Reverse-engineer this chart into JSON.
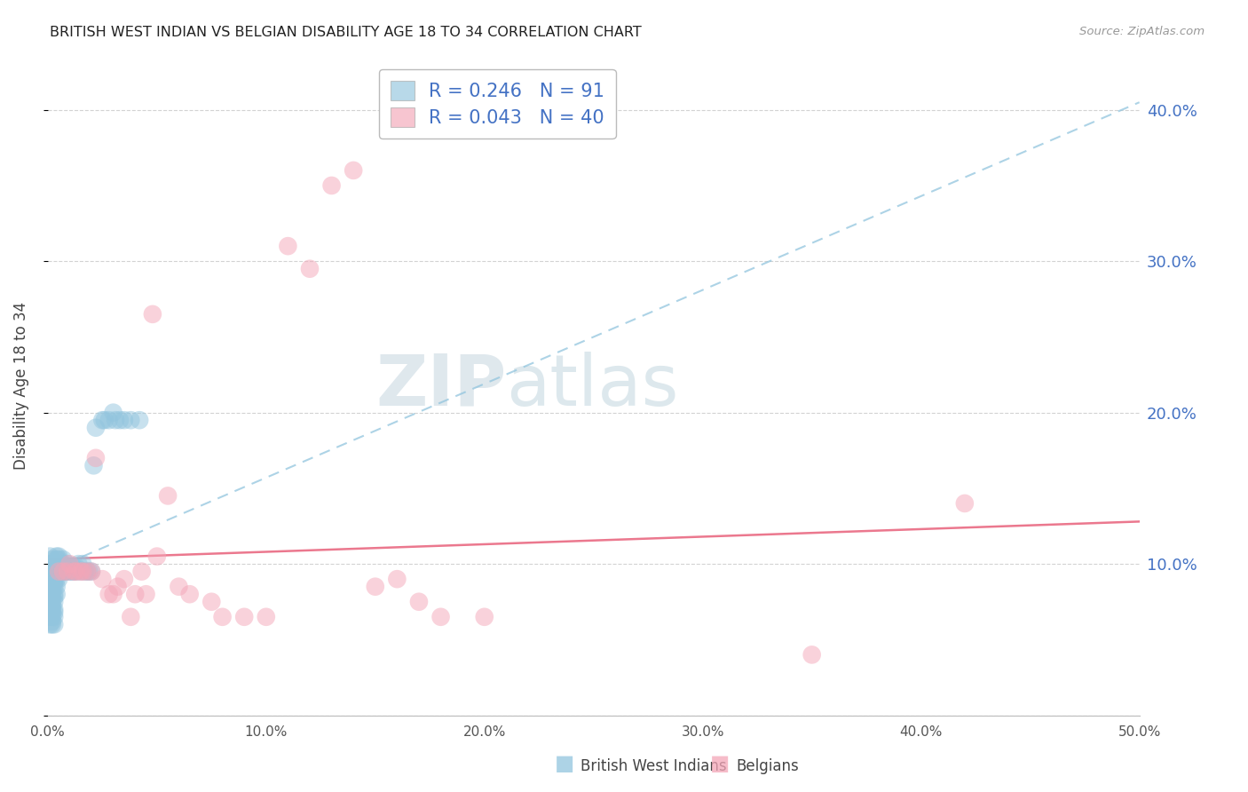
{
  "title": "BRITISH WEST INDIAN VS BELGIAN DISABILITY AGE 18 TO 34 CORRELATION CHART",
  "source": "Source: ZipAtlas.com",
  "ylabel": "Disability Age 18 to 34",
  "xmin": 0.0,
  "xmax": 0.5,
  "ymin": 0.0,
  "ymax": 0.435,
  "ytick_vals": [
    0.0,
    0.1,
    0.2,
    0.3,
    0.4
  ],
  "ytick_labels_right": [
    "",
    "10.0%",
    "20.0%",
    "30.0%",
    "40.0%"
  ],
  "xtick_vals": [
    0.0,
    0.1,
    0.2,
    0.3,
    0.4,
    0.5
  ],
  "xtick_labels": [
    "0.0%",
    "10.0%",
    "20.0%",
    "30.0%",
    "40.0%",
    "50.0%"
  ],
  "blue_R": 0.246,
  "blue_N": 91,
  "pink_R": 0.043,
  "pink_N": 40,
  "blue_color": "#92c5de",
  "pink_color": "#f4a6b8",
  "trend_blue_color": "#92c5de",
  "trend_pink_color": "#e8607a",
  "watermark_zip": "ZIP",
  "watermark_atlas": "atlas",
  "blue_x": [
    0.001,
    0.001,
    0.001,
    0.001,
    0.001,
    0.001,
    0.001,
    0.001,
    0.001,
    0.001,
    0.002,
    0.002,
    0.002,
    0.002,
    0.002,
    0.002,
    0.002,
    0.002,
    0.002,
    0.002,
    0.002,
    0.002,
    0.002,
    0.002,
    0.002,
    0.002,
    0.002,
    0.002,
    0.003,
    0.003,
    0.003,
    0.003,
    0.003,
    0.003,
    0.003,
    0.003,
    0.003,
    0.003,
    0.003,
    0.003,
    0.004,
    0.004,
    0.004,
    0.004,
    0.004,
    0.004,
    0.004,
    0.005,
    0.005,
    0.005,
    0.005,
    0.005,
    0.005,
    0.006,
    0.006,
    0.006,
    0.007,
    0.007,
    0.007,
    0.007,
    0.008,
    0.008,
    0.009,
    0.009,
    0.009,
    0.01,
    0.01,
    0.011,
    0.011,
    0.012,
    0.012,
    0.013,
    0.013,
    0.014,
    0.015,
    0.016,
    0.017,
    0.018,
    0.019,
    0.02,
    0.021,
    0.022,
    0.025,
    0.026,
    0.028,
    0.03,
    0.031,
    0.033,
    0.035,
    0.038,
    0.042
  ],
  "blue_y": [
    0.06,
    0.065,
    0.07,
    0.075,
    0.08,
    0.085,
    0.09,
    0.095,
    0.1,
    0.105,
    0.06,
    0.062,
    0.065,
    0.068,
    0.07,
    0.072,
    0.075,
    0.078,
    0.08,
    0.082,
    0.085,
    0.088,
    0.09,
    0.092,
    0.095,
    0.098,
    0.1,
    0.103,
    0.06,
    0.065,
    0.068,
    0.07,
    0.075,
    0.078,
    0.08,
    0.085,
    0.088,
    0.09,
    0.095,
    0.098,
    0.1,
    0.103,
    0.105,
    0.095,
    0.09,
    0.085,
    0.08,
    0.095,
    0.098,
    0.1,
    0.103,
    0.105,
    0.09,
    0.095,
    0.098,
    0.1,
    0.095,
    0.098,
    0.1,
    0.103,
    0.095,
    0.098,
    0.095,
    0.098,
    0.1,
    0.095,
    0.098,
    0.095,
    0.098,
    0.095,
    0.098,
    0.095,
    0.098,
    0.1,
    0.095,
    0.1,
    0.095,
    0.095,
    0.095,
    0.095,
    0.165,
    0.19,
    0.195,
    0.195,
    0.195,
    0.2,
    0.195,
    0.195,
    0.195,
    0.195,
    0.195
  ],
  "pink_x": [
    0.005,
    0.007,
    0.009,
    0.01,
    0.012,
    0.013,
    0.015,
    0.016,
    0.018,
    0.02,
    0.022,
    0.025,
    0.028,
    0.03,
    0.032,
    0.035,
    0.038,
    0.04,
    0.043,
    0.045,
    0.048,
    0.05,
    0.055,
    0.06,
    0.065,
    0.075,
    0.08,
    0.09,
    0.1,
    0.11,
    0.12,
    0.13,
    0.14,
    0.15,
    0.16,
    0.17,
    0.18,
    0.2,
    0.35,
    0.42
  ],
  "pink_y": [
    0.095,
    0.095,
    0.095,
    0.1,
    0.095,
    0.095,
    0.095,
    0.095,
    0.095,
    0.095,
    0.17,
    0.09,
    0.08,
    0.08,
    0.085,
    0.09,
    0.065,
    0.08,
    0.095,
    0.08,
    0.265,
    0.105,
    0.145,
    0.085,
    0.08,
    0.075,
    0.065,
    0.065,
    0.065,
    0.31,
    0.295,
    0.35,
    0.36,
    0.085,
    0.09,
    0.075,
    0.065,
    0.065,
    0.04,
    0.14
  ],
  "trend_blue_x0": 0.0,
  "trend_blue_x1": 0.5,
  "trend_blue_y0": 0.095,
  "trend_blue_y1": 0.405,
  "trend_pink_x0": 0.0,
  "trend_pink_x1": 0.5,
  "trend_pink_y0": 0.103,
  "trend_pink_y1": 0.128
}
